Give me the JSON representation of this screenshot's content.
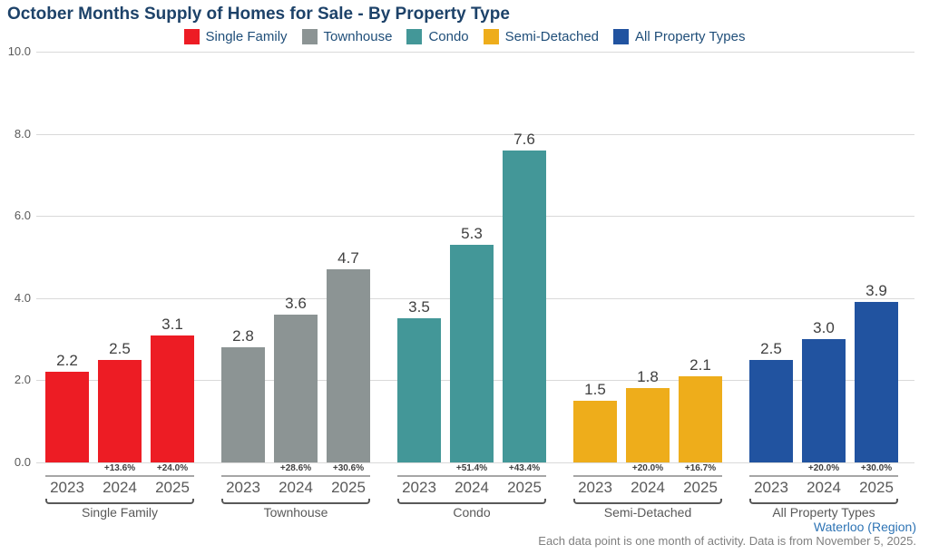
{
  "chart_data": {
    "type": "bar",
    "title": "October Months Supply of Homes for Sale - By Property Type",
    "xlabel": "",
    "ylabel": "",
    "ylim": [
      0,
      10
    ],
    "yticks": [
      0,
      2,
      4,
      6,
      8,
      10
    ],
    "grid": true,
    "legend_position": "top",
    "categories": [
      "2023",
      "2024",
      "2025"
    ],
    "legend": [
      "Single Family",
      "Townhouse",
      "Condo",
      "Semi-Detached",
      "All Property Types"
    ],
    "groups": [
      {
        "label": "Single Family",
        "color": "#ed1c24",
        "values": [
          2.2,
          2.5,
          3.1
        ],
        "pct_change": [
          "",
          "+13.6%",
          "+24.0%"
        ]
      },
      {
        "label": "Townhouse",
        "color": "#8c9494",
        "values": [
          2.8,
          3.6,
          4.7
        ],
        "pct_change": [
          "",
          "+28.6%",
          "+30.6%"
        ]
      },
      {
        "label": "Condo",
        "color": "#439798",
        "values": [
          3.5,
          5.3,
          7.6
        ],
        "pct_change": [
          "",
          "+51.4%",
          "+43.4%"
        ]
      },
      {
        "label": "Semi-Detached",
        "color": "#eead1b",
        "values": [
          1.5,
          1.8,
          2.1
        ],
        "pct_change": [
          "",
          "+20.0%",
          "+16.7%"
        ]
      },
      {
        "label": "All Property Types",
        "color": "#2153a0",
        "values": [
          2.5,
          3.0,
          3.9
        ],
        "pct_change": [
          "",
          "+20.0%",
          "+30.0%"
        ]
      }
    ]
  },
  "footer": {
    "region": "Waterloo (Region)",
    "note": "Each data point is one month of activity. Data is from November 5, 2025."
  },
  "colors": {
    "title_text": "#1d4269",
    "legend_text": "#1f4e79",
    "axis_text": "#595959",
    "value_text": "#404040",
    "gridline": "#d9d9d9",
    "group_line": "#a6a6a6",
    "region_link": "#2e74b5",
    "note_text": "#7f7f7f"
  }
}
